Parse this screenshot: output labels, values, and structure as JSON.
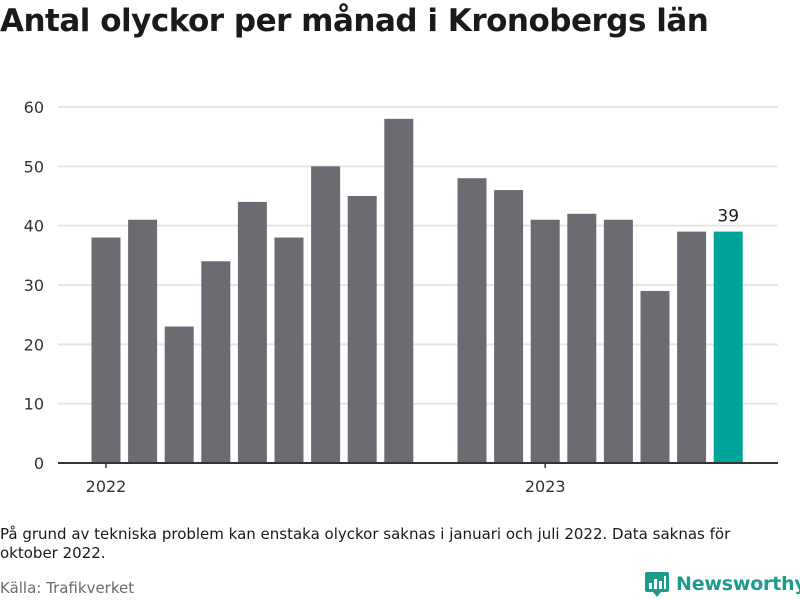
{
  "header": {
    "title": "Antal olyckor per månad i Kronobergs län"
  },
  "footer": {
    "note": "På grund av tekniska problem kan enstaka olyckor saknas i januari och juli 2022. Data saknas för oktober 2022.",
    "source": "Källa: Trafikverket",
    "brand": "Newsworthy",
    "brand_icon": "newsworthy-logo-icon"
  },
  "colors": {
    "bar": "#6d6b72",
    "highlight": "#00a399",
    "grid": "#e6e6e6",
    "axis": "#333333",
    "brand": "#1e9b8d"
  },
  "chart_data": {
    "type": "bar",
    "title": "Antal olyckor per månad i Kronobergs län",
    "xlabel": "",
    "ylabel": "",
    "ylim": [
      0,
      60
    ],
    "yticks": [
      0,
      10,
      20,
      30,
      40,
      50,
      60
    ],
    "xtick_labels": [
      "2022",
      "2023"
    ],
    "grid": true,
    "categories": [
      "2022-01",
      "2022-02",
      "2022-03",
      "2022-04",
      "2022-05",
      "2022-06",
      "2022-07",
      "2022-08",
      "2022-09",
      "2022-10",
      "2022-11",
      "2022-12",
      "2023-01",
      "2023-02",
      "2023-03",
      "2023-04",
      "2023-05",
      "2023-06"
    ],
    "values": [
      38,
      41,
      23,
      34,
      44,
      38,
      50,
      45,
      58,
      null,
      48,
      46,
      41,
      42,
      41,
      29,
      39,
      39
    ],
    "highlight_index": 17,
    "data_labels": [
      {
        "index": 17,
        "text": "39"
      }
    ]
  }
}
